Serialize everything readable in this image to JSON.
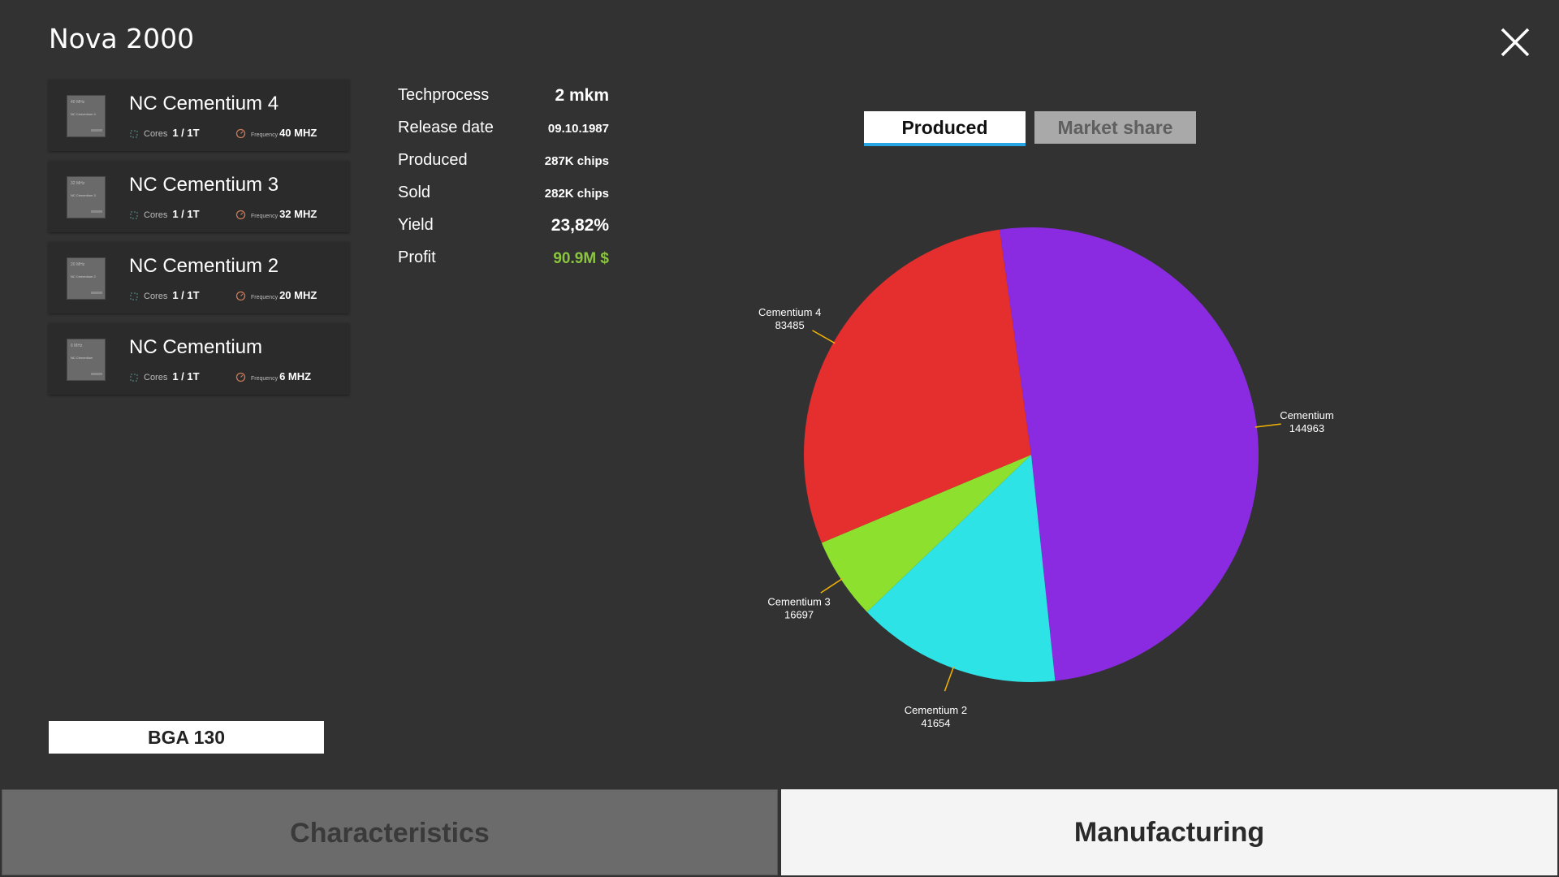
{
  "window": {
    "title": "Nova 2000"
  },
  "chips": [
    {
      "name": "NC Cementium 4",
      "thumb_line1": "40 MHz",
      "thumb_line2": "NC Cementium 4",
      "cores_label": "Cores",
      "cores": "1 / 1T",
      "freq_label": "Frequency",
      "freq": "40 MHZ"
    },
    {
      "name": "NC Cementium 3",
      "thumb_line1": "32 MHz",
      "thumb_line2": "NC Cementium 3",
      "cores_label": "Cores",
      "cores": "1 / 1T",
      "freq_label": "Frequency",
      "freq": "32 MHZ"
    },
    {
      "name": "NC Cementium 2",
      "thumb_line1": "20 MHz",
      "thumb_line2": "NC Cementium 2",
      "cores_label": "Cores",
      "cores": "1 / 1T",
      "freq_label": "Frequency",
      "freq": "20 MHZ"
    },
    {
      "name": "NC Cementium",
      "thumb_line1": "6 MHz",
      "thumb_line2": "NC Cementium",
      "cores_label": "Cores",
      "cores": "1 / 1T",
      "freq_label": "Frequency",
      "freq": "6 MHZ"
    }
  ],
  "info": {
    "techprocess": {
      "label": "Techprocess",
      "value": "2 mkm"
    },
    "release_date": {
      "label": "Release date",
      "value": "09.10.1987"
    },
    "produced": {
      "label": "Produced",
      "value": "287K chips"
    },
    "sold": {
      "label": "Sold",
      "value": "282K chips"
    },
    "yield": {
      "label": "Yield",
      "value": "23,82%"
    },
    "profit": {
      "label": "Profit",
      "value": "90.9M $",
      "color": "#8bc53f"
    }
  },
  "chart_tabs": {
    "produced": "Produced",
    "market_share": "Market share",
    "active": "produced"
  },
  "chart_data": {
    "type": "pie",
    "slices": [
      {
        "label": "Cementium",
        "value": 144963,
        "color": "#8a2be2"
      },
      {
        "label": "Cementium 2",
        "value": 41654,
        "color": "#2ee3e6"
      },
      {
        "label": "Cementium 3",
        "value": 16697,
        "color": "#8de02e"
      },
      {
        "label": "Cementium 4",
        "value": 83485,
        "color": "#e52e2e"
      }
    ],
    "leader_color": "#f5b400"
  },
  "socket": {
    "label": "BGA 130"
  },
  "bottom_tabs": {
    "characteristics": "Characteristics",
    "manufacturing": "Manufacturing",
    "active": "manufacturing"
  }
}
